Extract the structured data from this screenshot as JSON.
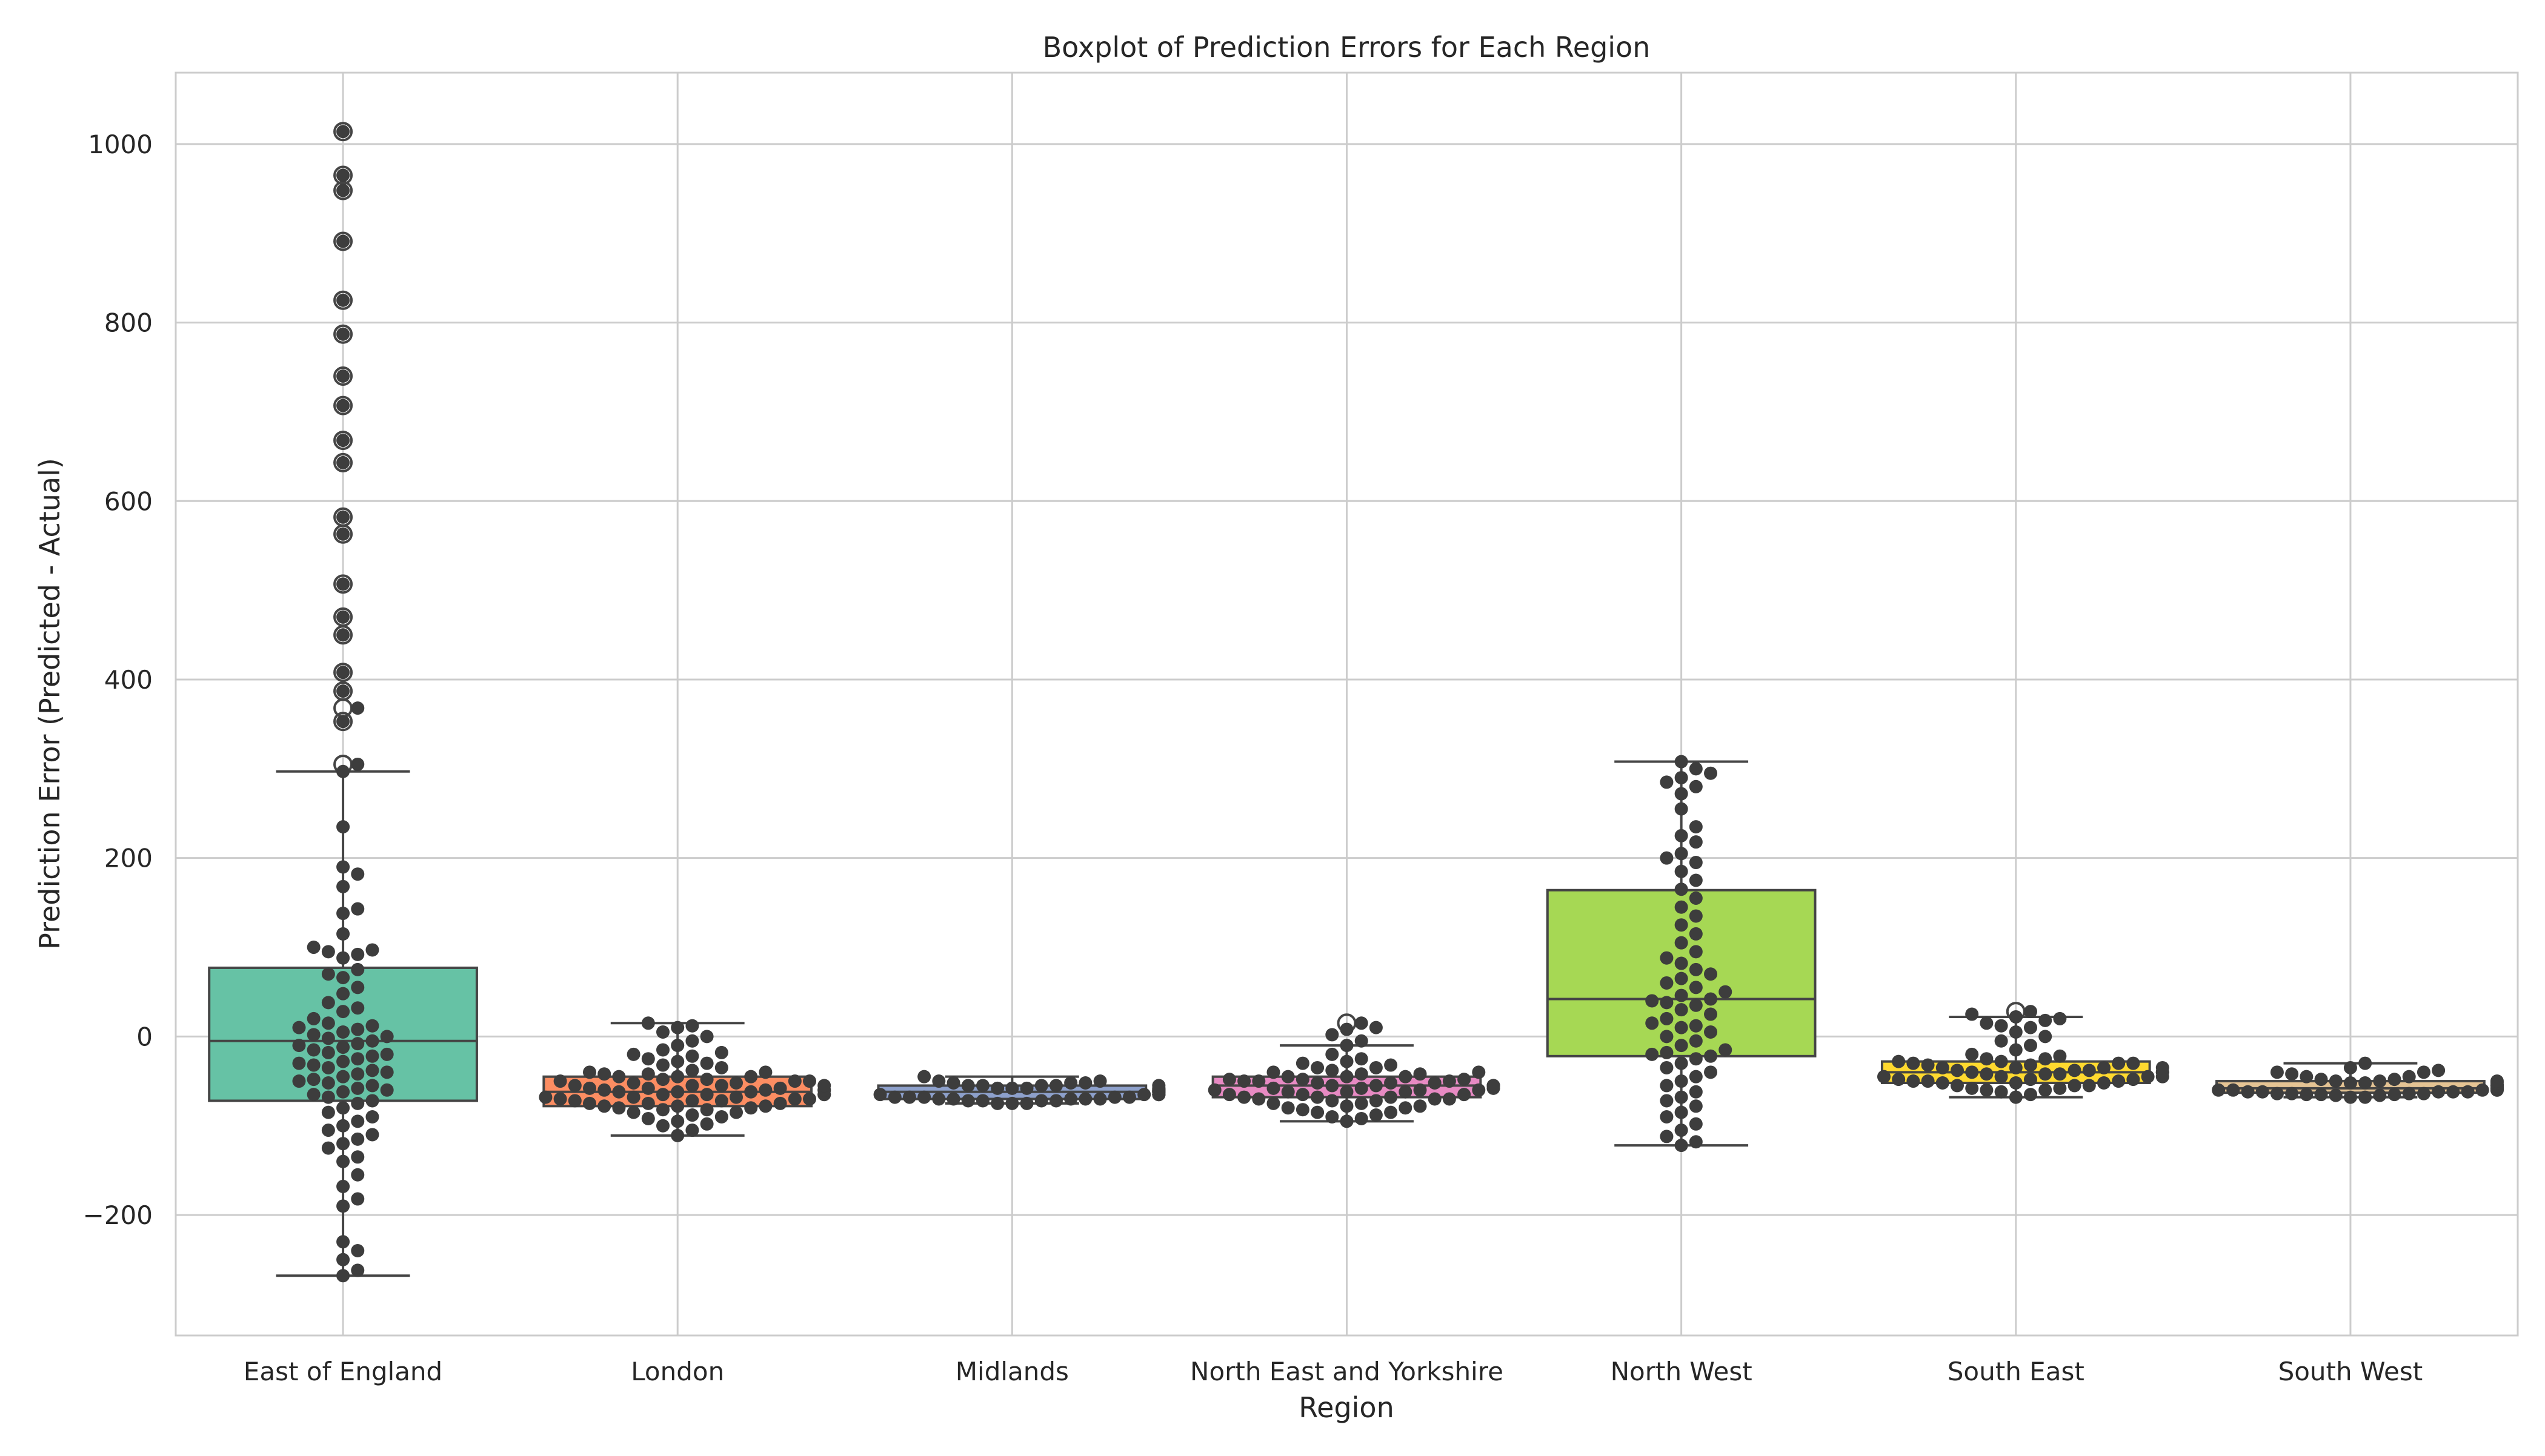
{
  "chart_data": {
    "type": "box",
    "title": "Boxplot of Prediction Errors for Each Region",
    "xlabel": "Region",
    "ylabel": "Prediction Error (Predicted - Actual)",
    "ylim": [
      -335,
      1080
    ],
    "yticks": [
      -200,
      0,
      200,
      400,
      600,
      800,
      1000
    ],
    "ytick_labels": [
      "−200",
      "0",
      "200",
      "400",
      "600",
      "800",
      "1000"
    ],
    "grid": true,
    "categories": [
      "East of England",
      "London",
      "Midlands",
      "North East and Yorkshire",
      "North West",
      "South East",
      "South West"
    ],
    "boxes": [
      {
        "category": "East of England",
        "color": "#66c2a5",
        "whisker_low": -268,
        "q1": -72,
        "median": -5,
        "q3": 77,
        "whisker_high": 297,
        "fliers": [
          1014,
          965,
          948,
          891,
          825,
          787,
          740,
          707,
          668,
          643,
          582,
          563,
          507,
          470,
          450,
          408,
          387,
          368,
          353,
          305
        ]
      },
      {
        "category": "London",
        "color": "#fc8d62",
        "whisker_low": -111,
        "q1": -78,
        "median": -62,
        "q3": -45,
        "whisker_high": 15,
        "fliers": []
      },
      {
        "category": "Midlands",
        "color": "#8da0cb",
        "whisker_low": -75,
        "q1": -70,
        "median": -62,
        "q3": -55,
        "whisker_high": -45,
        "fliers": []
      },
      {
        "category": "North East and Yorkshire",
        "color": "#e78ac3",
        "whisker_low": -95,
        "q1": -68,
        "median": -55,
        "q3": -45,
        "whisker_high": -10,
        "fliers": [
          15
        ]
      },
      {
        "category": "North West",
        "color": "#a6d854",
        "whisker_low": -122,
        "q1": -22,
        "median": 42,
        "q3": 164,
        "whisker_high": 308,
        "fliers": []
      },
      {
        "category": "South East",
        "color": "#ffd92f",
        "whisker_low": -68,
        "q1": -52,
        "median": -40,
        "q3": -28,
        "whisker_high": 22,
        "fliers": [
          28
        ]
      },
      {
        "category": "South West",
        "color": "#e5c494",
        "whisker_low": -68,
        "q1": -63,
        "median": -58,
        "q3": -50,
        "whisker_high": -30,
        "fliers": []
      }
    ],
    "swarm": [
      {
        "category": "East of England",
        "points": [
          1014,
          965,
          948,
          891,
          825,
          787,
          740,
          707,
          668,
          643,
          582,
          563,
          507,
          470,
          450,
          408,
          387,
          368,
          353,
          305,
          297,
          235,
          190,
          182,
          168,
          143,
          138,
          115,
          100,
          97,
          95,
          92,
          88,
          75,
          70,
          66,
          55,
          48,
          38,
          32,
          28,
          20,
          15,
          12,
          10,
          8,
          5,
          2,
          0,
          -2,
          -5,
          -8,
          -10,
          -12,
          -15,
          -18,
          -20,
          -22,
          -25,
          -28,
          -30,
          -32,
          -35,
          -38,
          -40,
          -42,
          -45,
          -48,
          -50,
          -52,
          -55,
          -58,
          -60,
          -62,
          -65,
          -68,
          -72,
          -75,
          -80,
          -85,
          -90,
          -95,
          -100,
          -105,
          -110,
          -115,
          -120,
          -125,
          -135,
          -140,
          -155,
          -168,
          -182,
          -190,
          -230,
          -240,
          -250,
          -262,
          -268
        ]
      },
      {
        "category": "London",
        "points": [
          15,
          12,
          10,
          5,
          0,
          -5,
          -10,
          -15,
          -18,
          -20,
          -22,
          -25,
          -28,
          -30,
          -32,
          -35,
          -38,
          -40,
          -40,
          -42,
          -42,
          -45,
          -45,
          -45,
          -48,
          -48,
          -50,
          -50,
          -50,
          -52,
          -52,
          -55,
          -55,
          -55,
          -55,
          -58,
          -58,
          -58,
          -60,
          -60,
          -60,
          -60,
          -62,
          -62,
          -62,
          -65,
          -65,
          -65,
          -65,
          -68,
          -68,
          -68,
          -70,
          -70,
          -70,
          -72,
          -72,
          -72,
          -75,
          -75,
          -75,
          -78,
          -78,
          -78,
          -80,
          -80,
          -82,
          -82,
          -85,
          -85,
          -88,
          -90,
          -92,
          -95,
          -98,
          -100,
          -105,
          -111
        ]
      },
      {
        "category": "Midlands",
        "points": [
          -45,
          -50,
          -50,
          -52,
          -52,
          -52,
          -55,
          -55,
          -55,
          -55,
          -55,
          -58,
          -58,
          -58,
          -58,
          -58,
          -60,
          -60,
          -60,
          -60,
          -60,
          -60,
          -62,
          -62,
          -62,
          -62,
          -62,
          -62,
          -65,
          -65,
          -65,
          -65,
          -65,
          -65,
          -68,
          -68,
          -68,
          -68,
          -68,
          -70,
          -70,
          -70,
          -70,
          -70,
          -72,
          -72,
          -72,
          -72,
          -75,
          -75,
          -75
        ]
      },
      {
        "category": "North East and Yorkshire",
        "points": [
          15,
          10,
          8,
          2,
          -5,
          -10,
          -20,
          -25,
          -28,
          -30,
          -32,
          -35,
          -35,
          -38,
          -40,
          -40,
          -42,
          -42,
          -45,
          -45,
          -45,
          -48,
          -48,
          -48,
          -50,
          -50,
          -50,
          -52,
          -52,
          -52,
          -55,
          -55,
          -55,
          -55,
          -58,
          -58,
          -58,
          -60,
          -60,
          -60,
          -62,
          -62,
          -62,
          -65,
          -65,
          -65,
          -68,
          -68,
          -68,
          -70,
          -70,
          -70,
          -72,
          -72,
          -75,
          -75,
          -78,
          -78,
          -80,
          -80,
          -82,
          -85,
          -85,
          -88,
          -90,
          -92,
          -95
        ]
      },
      {
        "category": "North West",
        "points": [
          308,
          300,
          295,
          290,
          285,
          280,
          272,
          255,
          235,
          225,
          218,
          205,
          200,
          195,
          185,
          175,
          165,
          155,
          145,
          135,
          125,
          115,
          105,
          95,
          88,
          82,
          75,
          70,
          65,
          60,
          55,
          50,
          46,
          42,
          40,
          38,
          35,
          30,
          25,
          20,
          15,
          12,
          10,
          5,
          0,
          -5,
          -10,
          -15,
          -18,
          -20,
          -22,
          -25,
          -30,
          -35,
          -40,
          -45,
          -50,
          -55,
          -62,
          -68,
          -72,
          -78,
          -85,
          -90,
          -98,
          -105,
          -112,
          -118,
          -122
        ]
      },
      {
        "category": "South East",
        "points": [
          28,
          25,
          22,
          20,
          18,
          15,
          12,
          10,
          5,
          0,
          -5,
          -10,
          -15,
          -20,
          -22,
          -25,
          -25,
          -28,
          -28,
          -30,
          -30,
          -30,
          -32,
          -32,
          -35,
          -35,
          -35,
          -35,
          -38,
          -38,
          -38,
          -40,
          -40,
          -40,
          -40,
          -42,
          -42,
          -42,
          -45,
          -45,
          -45,
          -45,
          -48,
          -48,
          -48,
          -50,
          -50,
          -50,
          -52,
          -52,
          -52,
          -55,
          -55,
          -55,
          -58,
          -58,
          -60,
          -60,
          -62,
          -65,
          -68
        ]
      },
      {
        "category": "South West",
        "points": [
          -30,
          -35,
          -38,
          -40,
          -40,
          -42,
          -45,
          -45,
          -48,
          -48,
          -50,
          -50,
          -50,
          -52,
          -52,
          -52,
          -55,
          -55,
          -55,
          -55,
          -55,
          -58,
          -58,
          -58,
          -58,
          -58,
          -60,
          -60,
          -60,
          -60,
          -60,
          -62,
          -62,
          -62,
          -62,
          -62,
          -64,
          -64,
          -64,
          -64,
          -65,
          -65,
          -65,
          -66,
          -66,
          -68,
          -68
        ]
      }
    ],
    "styles": {
      "point_color": "#3d3d3d",
      "line_color": "#454545",
      "grid_color": "#cccccc",
      "frame_color": "#cccccc",
      "background": "#ffffff"
    }
  }
}
